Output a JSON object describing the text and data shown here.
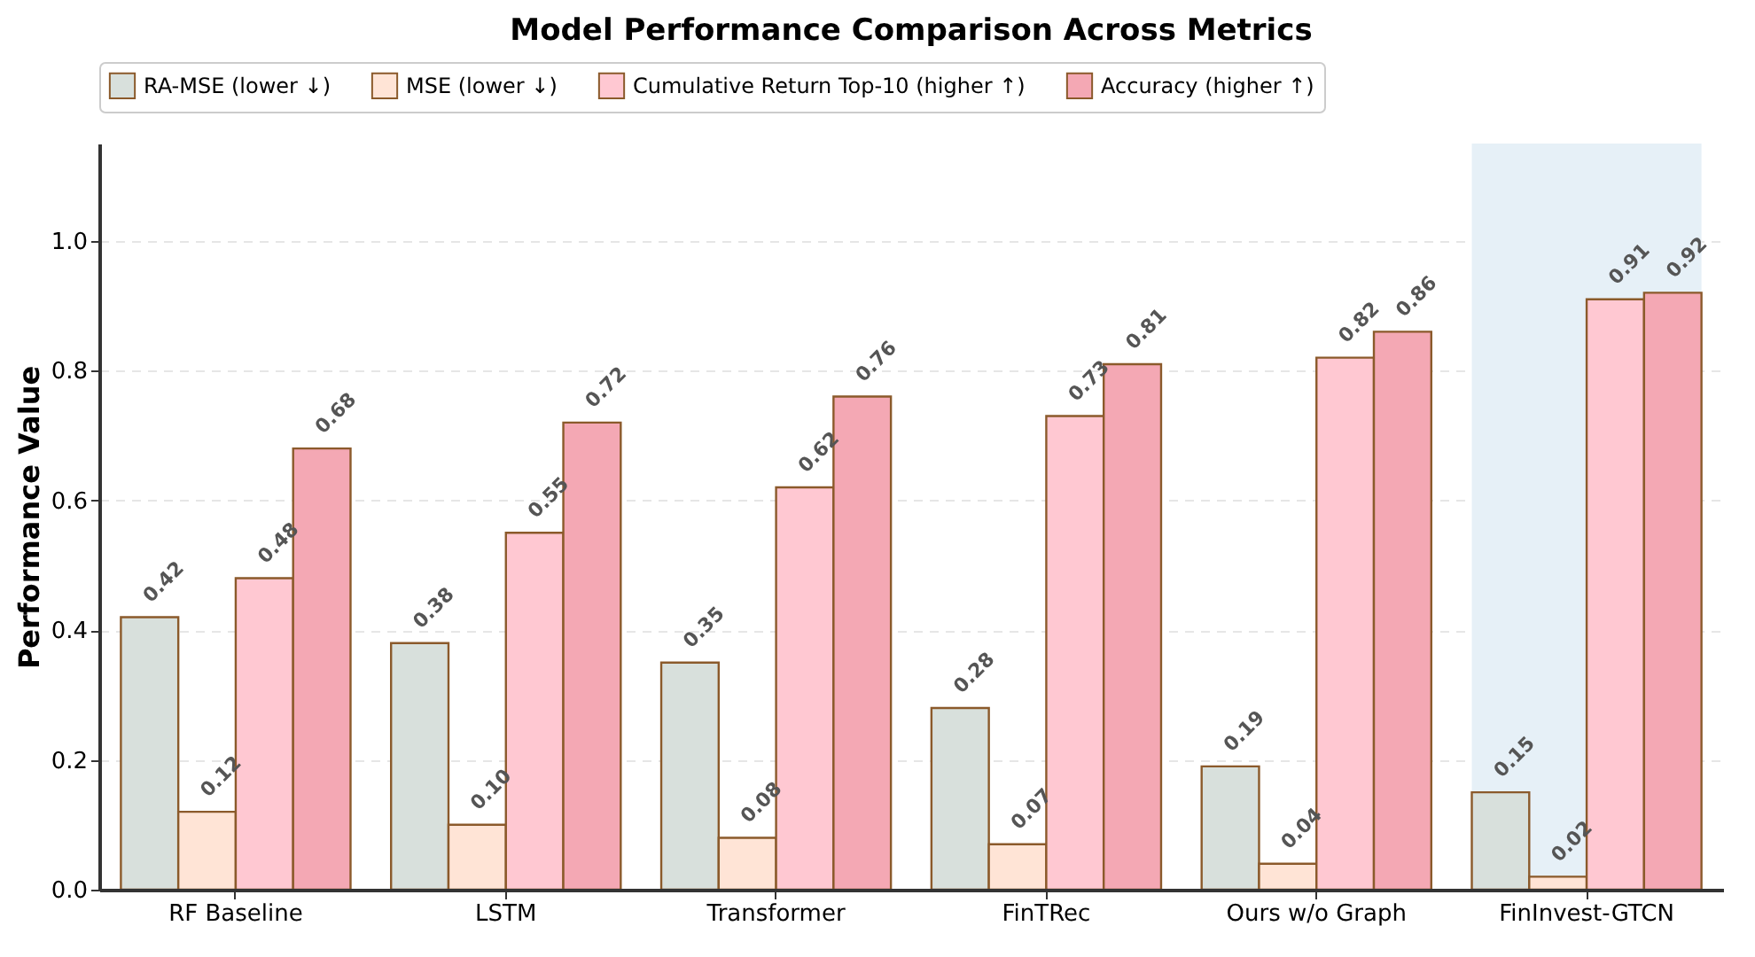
{
  "chart_data": {
    "type": "bar",
    "title": "Model Performance Comparison Across Metrics",
    "ylabel": "Performance Value",
    "categories": [
      "RF Baseline",
      "LSTM",
      "Transformer",
      "FinTRec",
      "Ours w/o Graph",
      "FinInvest-GTCN"
    ],
    "series": [
      {
        "name": "RA-MSE (lower ↓)",
        "color": "#d8e0dc",
        "values": [
          0.42,
          0.38,
          0.35,
          0.28,
          0.19,
          0.15
        ],
        "value_labels": [
          "0.42",
          "0.38",
          "0.35",
          "0.28",
          "0.19",
          "0.15"
        ]
      },
      {
        "name": "MSE (lower ↓)",
        "color": "#ffe4d6",
        "values": [
          0.12,
          0.1,
          0.08,
          0.07,
          0.04,
          0.02
        ],
        "value_labels": [
          "0.12",
          "0.10",
          "0.08",
          "0.07",
          "0.04",
          "0.02"
        ]
      },
      {
        "name": "Cumulative Return Top-10 (higher ↑)",
        "color": "#ffc8d2",
        "values": [
          0.48,
          0.55,
          0.62,
          0.73,
          0.82,
          0.91
        ],
        "value_labels": [
          "0.48",
          "0.55",
          "0.62",
          "0.73",
          "0.82",
          "0.91"
        ]
      },
      {
        "name": "Accuracy (higher ↑)",
        "color": "#f4a8b4",
        "values": [
          0.68,
          0.72,
          0.76,
          0.81,
          0.86,
          0.92
        ],
        "value_labels": [
          "0.68",
          "0.72",
          "0.76",
          "0.81",
          "0.86",
          "0.92"
        ]
      }
    ],
    "ylim": [
      0,
      1.15
    ],
    "yticks": [
      {
        "value": 0,
        "label": "0.0"
      },
      0.2,
      0.4,
      0.6,
      0.8,
      {
        "value": 1,
        "label": "1.0"
      }
    ],
    "bands": [
      {
        "axis": "x",
        "from": "FinInvest-GTCN",
        "to": "FinInvest-GTCN",
        "color": "#e6f0f7"
      }
    ],
    "grid": "y",
    "legend": "top"
  }
}
